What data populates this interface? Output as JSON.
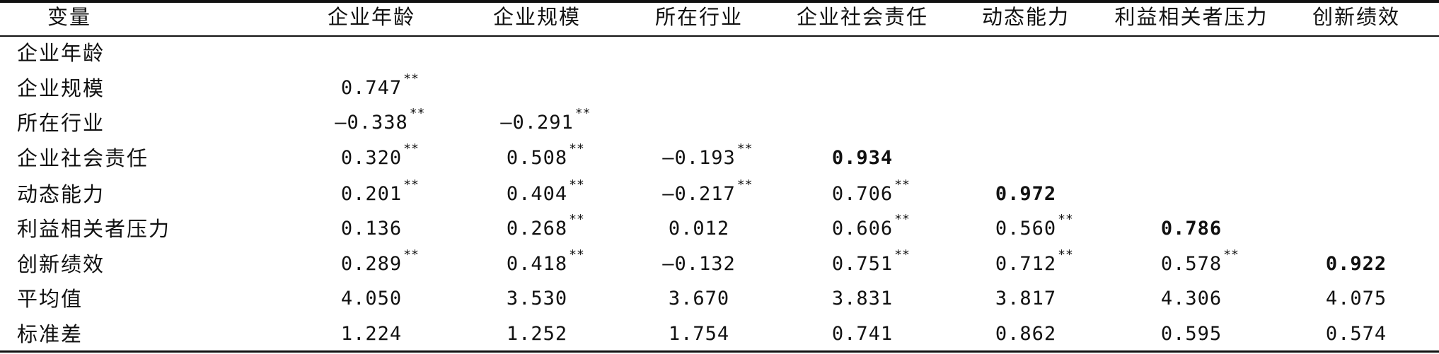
{
  "table": {
    "header": [
      "变量",
      "企业年龄",
      "企业规模",
      "所在行业",
      "企业社会责任",
      "动态能力",
      "利益相关者压力",
      "创新绩效"
    ],
    "rows": [
      {
        "label": "企业年龄",
        "cells": [
          null,
          null,
          null,
          null,
          null,
          null,
          null
        ]
      },
      {
        "label": "企业规模",
        "cells": [
          {
            "v": "0.747",
            "sig": "**"
          },
          null,
          null,
          null,
          null,
          null,
          null
        ]
      },
      {
        "label": "所在行业",
        "cells": [
          {
            "v": "—0.338",
            "sig": "**"
          },
          {
            "v": "—0.291",
            "sig": "**"
          },
          null,
          null,
          null,
          null,
          null
        ]
      },
      {
        "label": "企业社会责任",
        "cells": [
          {
            "v": "0.320",
            "sig": "**"
          },
          {
            "v": "0.508",
            "sig": "**"
          },
          {
            "v": "—0.193",
            "sig": "**"
          },
          {
            "v": "0.934",
            "bold": true
          },
          null,
          null,
          null
        ]
      },
      {
        "label": "动态能力",
        "cells": [
          {
            "v": "0.201",
            "sig": "**"
          },
          {
            "v": "0.404",
            "sig": "**"
          },
          {
            "v": "—0.217",
            "sig": "**"
          },
          {
            "v": "0.706",
            "sig": "**"
          },
          {
            "v": "0.972",
            "bold": true
          },
          null,
          null
        ]
      },
      {
        "label": "利益相关者压力",
        "cells": [
          {
            "v": "0.136"
          },
          {
            "v": "0.268",
            "sig": "**"
          },
          {
            "v": "0.012"
          },
          {
            "v": "0.606",
            "sig": "**"
          },
          {
            "v": "0.560",
            "sig": "**"
          },
          {
            "v": "0.786",
            "bold": true
          },
          null
        ]
      },
      {
        "label": "创新绩效",
        "cells": [
          {
            "v": "0.289",
            "sig": "**"
          },
          {
            "v": "0.418",
            "sig": "**"
          },
          {
            "v": "—0.132"
          },
          {
            "v": "0.751",
            "sig": "**"
          },
          {
            "v": "0.712",
            "sig": "**"
          },
          {
            "v": "0.578",
            "sig": "**"
          },
          {
            "v": "0.922",
            "bold": true
          }
        ]
      },
      {
        "label": "平均值",
        "cells": [
          {
            "v": "4.050"
          },
          {
            "v": "3.530"
          },
          {
            "v": "3.670"
          },
          {
            "v": "3.831"
          },
          {
            "v": "3.817"
          },
          {
            "v": "4.306"
          },
          {
            "v": "4.075"
          }
        ]
      },
      {
        "label": "标准差",
        "cells": [
          {
            "v": "1.224"
          },
          {
            "v": "1.252"
          },
          {
            "v": "1.754"
          },
          {
            "v": "0.741"
          },
          {
            "v": "0.862"
          },
          {
            "v": "0.595"
          },
          {
            "v": "0.574"
          }
        ]
      }
    ]
  }
}
